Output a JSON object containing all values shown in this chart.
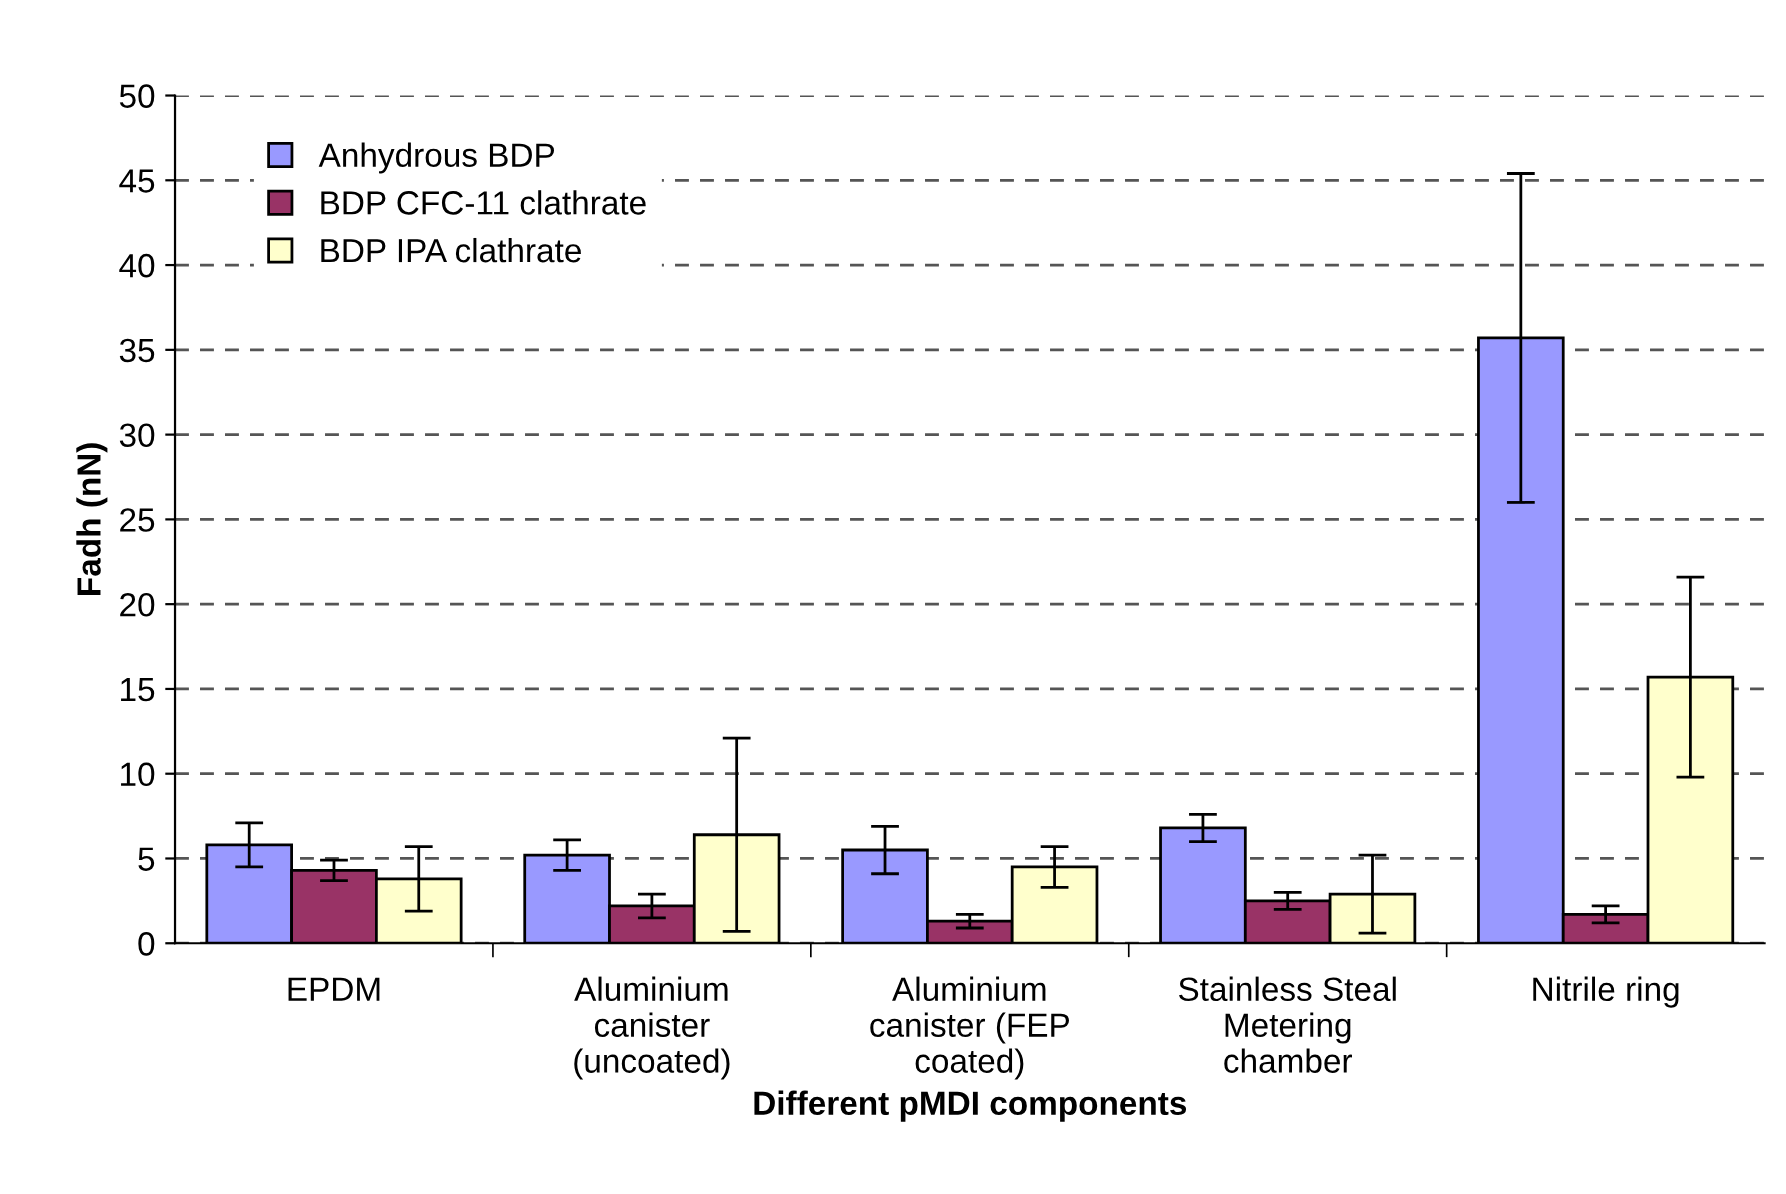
{
  "chart_data": {
    "type": "bar",
    "xlabel": "Different pMDI components",
    "ylabel": "Fadh (nN)",
    "categories": [
      "EPDM",
      "Aluminium\ncanister\n(uncoated)",
      "Aluminium\ncanister (FEP\ncoated)",
      "Stainless Steal\nMetering\nchamber",
      "Nitrile ring"
    ],
    "series": [
      {
        "name": "Anhydrous BDP",
        "color": "#9999ff",
        "values": [
          5.8,
          5.2,
          5.5,
          6.8,
          35.7
        ],
        "errors": [
          1.3,
          0.9,
          1.4,
          0.8,
          9.7
        ]
      },
      {
        "name": "BDP CFC-11 clathrate",
        "color": "#993366",
        "values": [
          4.3,
          2.2,
          1.3,
          2.5,
          1.7
        ],
        "errors": [
          0.6,
          0.7,
          0.4,
          0.5,
          0.5
        ]
      },
      {
        "name": "BDP IPA clathrate",
        "color": "#ffffcc",
        "values": [
          3.8,
          6.4,
          4.5,
          2.9,
          15.7
        ],
        "errors": [
          1.9,
          5.7,
          1.2,
          2.3,
          5.9
        ]
      }
    ],
    "ylim": [
      0,
      50
    ],
    "yticks": [
      0,
      5,
      10,
      15,
      20,
      25,
      30,
      35,
      40,
      45,
      50
    ],
    "grid": "y",
    "legend": "top left"
  }
}
